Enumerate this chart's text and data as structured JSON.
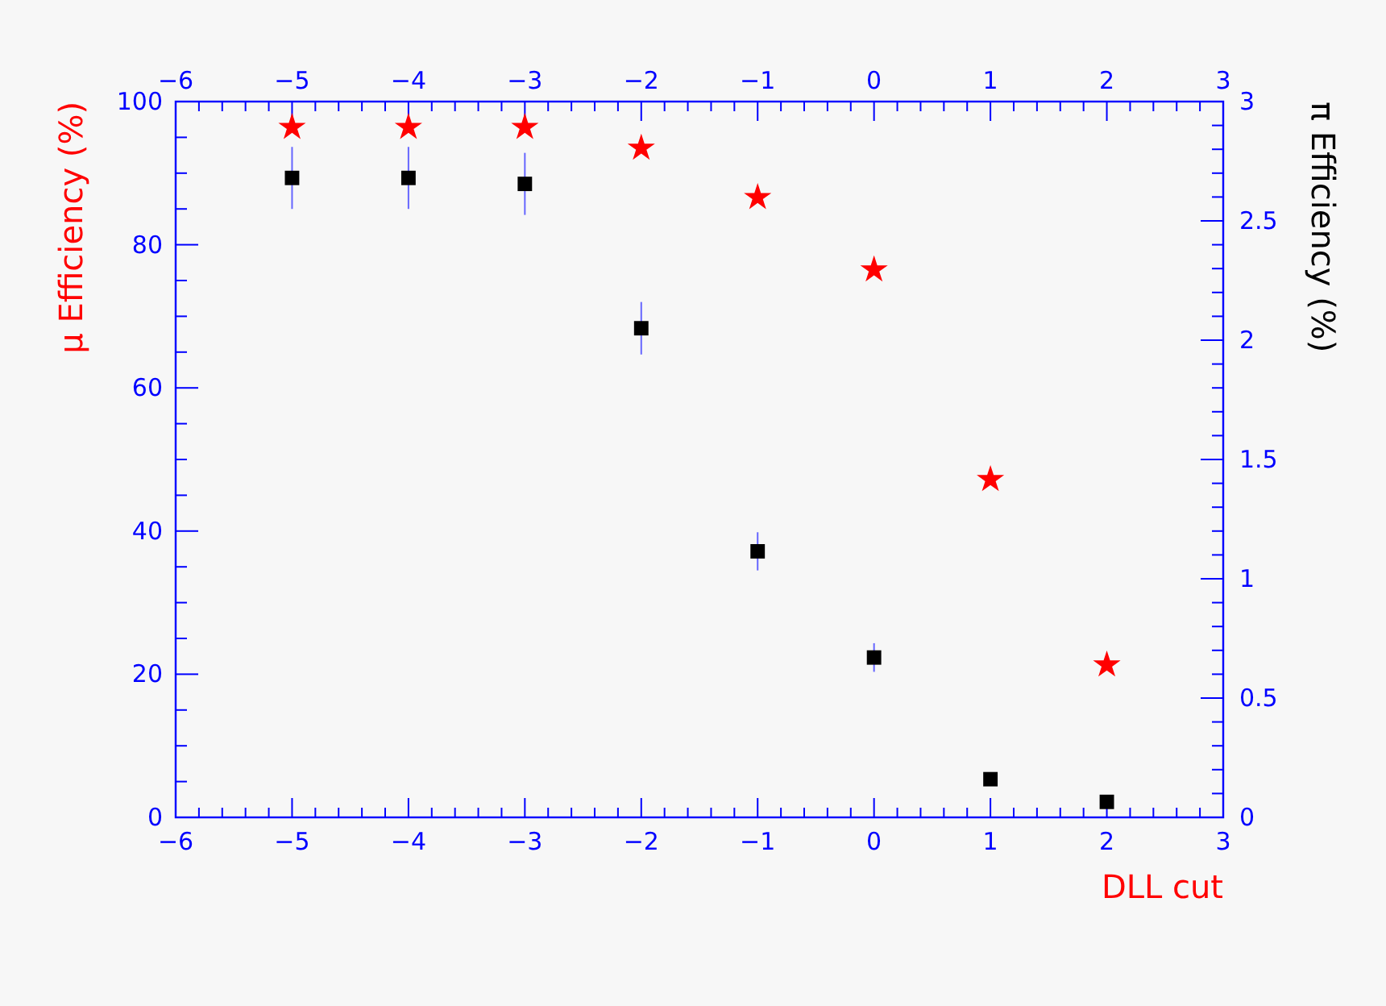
{
  "chart_data": {
    "type": "scatter",
    "xlabel": "DLL cut",
    "ylabel": "μ Efficiency (%)",
    "y2label": "π Efficiency (%)",
    "x": [
      -5,
      -4,
      -3,
      -2,
      -1,
      0,
      1,
      2
    ],
    "series": [
      {
        "color": "#ff0000",
        "marker": "star",
        "values": [
          96.4,
          96.4,
          96.4,
          93.5,
          86.6,
          76.5,
          47.2,
          21.3
        ]
      },
      {
        "color": "#000000",
        "marker": "square",
        "axis": "y2",
        "values": [
          2.68,
          2.68,
          2.655,
          2.05,
          1.115,
          0.67,
          0.16,
          0.065
        ],
        "errors": [
          0.13,
          0.13,
          0.13,
          0.11,
          0.08,
          0.06,
          null,
          null
        ]
      }
    ],
    "xlim": [
      -6,
      3
    ],
    "xticks": [
      -6,
      -5,
      -4,
      -3,
      -2,
      -1,
      0,
      1,
      2,
      3
    ],
    "x2lim": [
      -6,
      3
    ],
    "x2ticks": [
      -6,
      -5,
      -4,
      -3,
      -2,
      -1,
      0,
      1,
      2,
      3
    ],
    "ylim": [
      0,
      100
    ],
    "yticks": [
      0,
      20,
      40,
      60,
      80,
      100
    ],
    "y2lim": [
      0,
      3
    ],
    "y2ticks": [
      0,
      0.5,
      1,
      1.5,
      2,
      2.5,
      3
    ],
    "grid": false
  }
}
